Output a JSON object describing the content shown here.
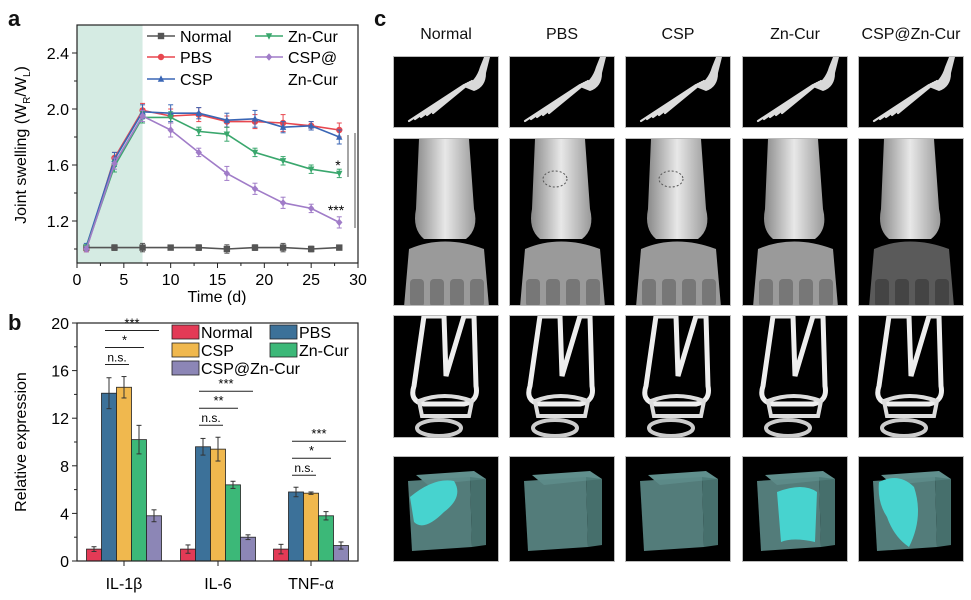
{
  "panels": {
    "a": "a",
    "b": "b",
    "c": "c"
  },
  "chart_data": [
    {
      "id": "a",
      "type": "line",
      "title": "",
      "xlabel": "Time (d)",
      "ylabel_main": "Joint swelling (W",
      "ylabel_sub1": "R",
      "ylabel_mid": "/W",
      "ylabel_sub2": "L",
      "ylabel_end": ")",
      "xlim": [
        0,
        30
      ],
      "ylim": [
        0.9,
        2.6
      ],
      "xticks": [
        0,
        5,
        10,
        15,
        20,
        25,
        30
      ],
      "yticks": [
        1.2,
        1.6,
        2.0,
        2.4
      ],
      "ytick_labels": [
        "1.2",
        "1.6",
        "2.0",
        "2.4"
      ],
      "shaded_region": [
        0,
        7
      ],
      "shaded_color": "#d5ebe3",
      "legend_position": "top-right",
      "x": [
        1,
        4,
        7,
        10,
        13,
        16,
        19,
        22,
        25,
        28
      ],
      "series": [
        {
          "name": "Normal",
          "color": "#555555",
          "marker": "square",
          "values": [
            1.01,
            1.01,
            1.01,
            1.01,
            1.01,
            1.0,
            1.01,
            1.01,
            1.0,
            1.01
          ],
          "errors": [
            0.01,
            0.02,
            0.03,
            0.01,
            0.02,
            0.03,
            0.02,
            0.03,
            0.02,
            0.01
          ]
        },
        {
          "name": "PBS",
          "color": "#e8474f",
          "marker": "circle",
          "values": [
            1.0,
            1.65,
            1.99,
            1.95,
            1.96,
            1.91,
            1.91,
            1.9,
            1.88,
            1.85
          ],
          "errors": [
            0.02,
            0.04,
            0.05,
            0.05,
            0.05,
            0.04,
            0.05,
            0.06,
            0.03,
            0.05
          ]
        },
        {
          "name": "CSP",
          "color": "#3a66b5",
          "marker": "triangle-up",
          "values": [
            1.02,
            1.64,
            1.98,
            1.97,
            1.97,
            1.92,
            1.93,
            1.87,
            1.88,
            1.8
          ],
          "errors": [
            0.02,
            0.05,
            0.05,
            0.06,
            0.04,
            0.05,
            0.06,
            0.04,
            0.03,
            0.05
          ]
        },
        {
          "name": "Zn-Cur",
          "color": "#3aa76d",
          "marker": "triangle-down",
          "values": [
            1.01,
            1.59,
            1.94,
            1.94,
            1.84,
            1.82,
            1.69,
            1.63,
            1.57,
            1.54
          ],
          "errors": [
            0.02,
            0.04,
            0.04,
            0.04,
            0.03,
            0.05,
            0.03,
            0.03,
            0.03,
            0.03
          ]
        },
        {
          "name": "CSP@\nZn-Cur",
          "legend_line1": "CSP@",
          "legend_line2": "Zn-Cur",
          "color": "#a07cc8",
          "marker": "diamond",
          "values": [
            1.0,
            1.61,
            1.95,
            1.85,
            1.69,
            1.54,
            1.43,
            1.33,
            1.29,
            1.19
          ],
          "errors": [
            0.02,
            0.04,
            0.04,
            0.05,
            0.03,
            0.05,
            0.04,
            0.04,
            0.03,
            0.04
          ]
        }
      ],
      "annotations": [
        {
          "text": "*",
          "near_series": "Zn-Cur"
        },
        {
          "text": "***",
          "near_series": "CSP@Zn-Cur"
        }
      ]
    },
    {
      "id": "b",
      "type": "bar",
      "title": "",
      "xlabel": "",
      "ylabel": "Relative expression",
      "ylim": [
        0,
        20
      ],
      "yticks": [
        0,
        4,
        8,
        12,
        16,
        20
      ],
      "categories": [
        "IL-1β",
        "IL-6",
        "TNF-α"
      ],
      "legend_position": "top-right",
      "series": [
        {
          "name": "Normal",
          "color": "#e33a56",
          "values": [
            1.0,
            1.0,
            1.0
          ],
          "errors": [
            0.2,
            0.35,
            0.4
          ]
        },
        {
          "name": "PBS",
          "color": "#3c7199",
          "values": [
            14.1,
            9.6,
            5.8
          ],
          "errors": [
            1.3,
            0.7,
            0.4
          ]
        },
        {
          "name": "CSP",
          "color": "#f0b84e",
          "values": [
            14.6,
            9.4,
            5.7
          ],
          "errors": [
            0.9,
            1.0,
            0.1
          ]
        },
        {
          "name": "Zn-Cur",
          "color": "#3cb878",
          "values": [
            10.2,
            6.4,
            3.8
          ],
          "errors": [
            1.2,
            0.3,
            0.35
          ]
        },
        {
          "name": "CSP@Zn-Cur",
          "color": "#8c86b6",
          "values": [
            3.8,
            2.0,
            1.3
          ],
          "errors": [
            0.5,
            0.2,
            0.3
          ]
        }
      ],
      "significance": [
        {
          "category": "IL-1β",
          "labels": [
            "n.s.",
            "*",
            "***"
          ]
        },
        {
          "category": "IL-6",
          "labels": [
            "n.s.",
            "**",
            "***"
          ]
        },
        {
          "category": "TNF-α",
          "labels": [
            "n.s.",
            "*",
            "***"
          ]
        }
      ]
    }
  ],
  "panel_c": {
    "columns": [
      "Normal",
      "PBS",
      "CSP",
      "Zn-Cur",
      "CSP@Zn-Cur"
    ],
    "rows": [
      "paw-skeleton-3d",
      "ankle-joint-3d",
      "ankle-section-2d",
      "trabecular-bone-cube"
    ],
    "cube_color": "#47d3cf"
  }
}
